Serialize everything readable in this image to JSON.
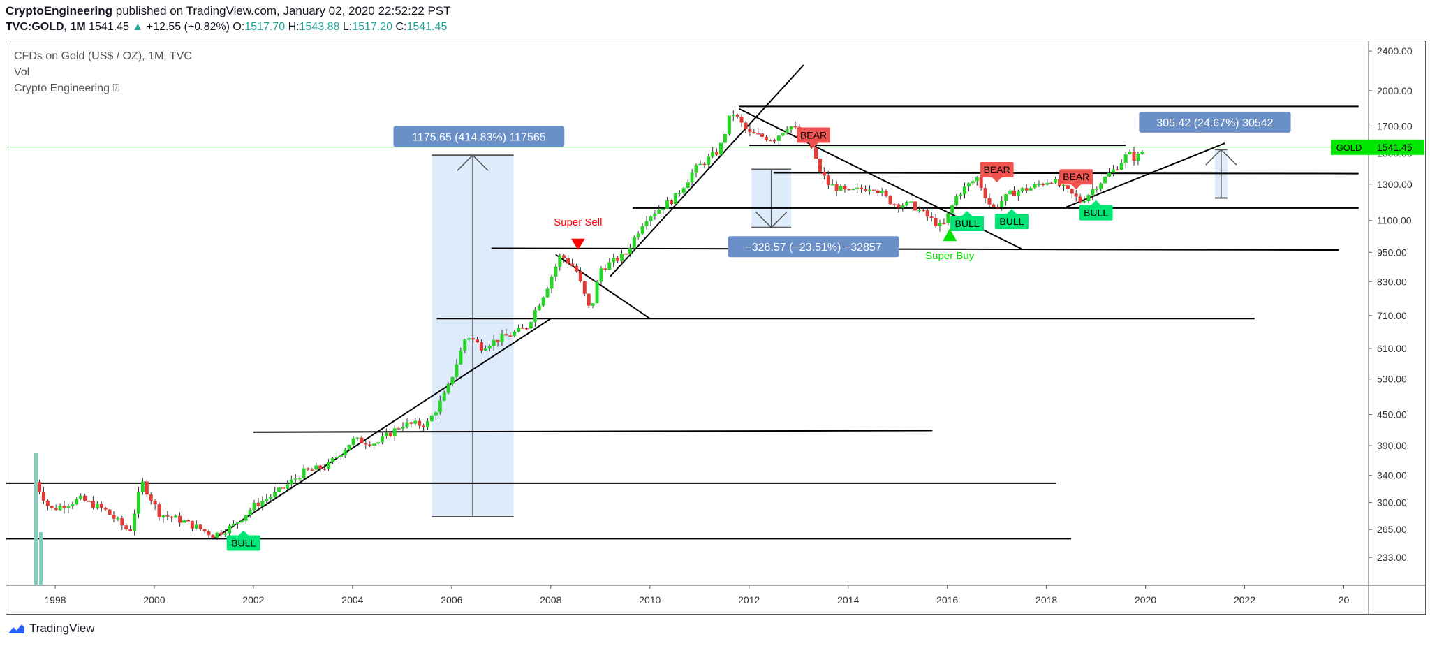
{
  "header": {
    "author": "CryptoEngineering",
    "published_text": " published on TradingView.com, January 02, 2020 22:52:22 PST",
    "symbol": "TVC:GOLD, 1M",
    "last": "1541.45",
    "change_arrow": "▲",
    "change": "+12.55 (+0.82%)",
    "o_label": "O:",
    "o_value": "1517.70",
    "h_label": "H:",
    "h_value": "1543.88",
    "l_label": "L:",
    "l_value": "1517.20",
    "c_label": "C:",
    "c_value": "1541.45"
  },
  "legend": {
    "title": "CFDs on Gold (US$ / OZ), 1M, TVC",
    "vol": "Vol",
    "indicator": "Crypto Engineering ⍰"
  },
  "footer": {
    "brand": "TradingView",
    "logo_icon": "tradingview-logo-icon"
  },
  "colors": {
    "bull": "#26d626",
    "bear": "#e53935",
    "label_bull": "#00e676",
    "label_bear": "#ef5350",
    "measure_box": "#cfe2f8",
    "measure_label": "#6b8fc7",
    "price_tag": "#00e600",
    "volume": "#7fcdbb"
  },
  "chart_data": {
    "type": "candlestick",
    "title": "CFDs on Gold (US$ / OZ), 1M, TVC",
    "scale": "log",
    "ylim": [
      205,
      2520
    ],
    "xlim": [
      1997.0,
      2024.5
    ],
    "y_ticks": [
      "2400.00",
      "2000.00",
      "1700.00",
      "1500.00",
      "1300.00",
      "1100.00",
      "950.00",
      "830.00",
      "710.00",
      "610.00",
      "530.00",
      "450.00",
      "390.00",
      "340.00",
      "300.00",
      "265.00",
      "233.00"
    ],
    "x_ticks": [
      "1998",
      "2000",
      "2002",
      "2004",
      "2006",
      "2008",
      "2010",
      "2012",
      "2014",
      "2016",
      "2018",
      "2020",
      "2022",
      "20"
    ],
    "current_price": {
      "symbol": "GOLD",
      "value": "1541.45",
      "price": 1541.45
    },
    "price_path": [
      [
        1997.6,
        330
      ],
      [
        1997.9,
        290
      ],
      [
        1998.5,
        305
      ],
      [
        1999.0,
        290
      ],
      [
        1999.5,
        262
      ],
      [
        1999.75,
        330
      ],
      [
        2000.1,
        285
      ],
      [
        2000.6,
        275
      ],
      [
        2001.2,
        258
      ],
      [
        2001.6,
        270
      ],
      [
        2002.0,
        295
      ],
      [
        2002.5,
        315
      ],
      [
        2003.0,
        345
      ],
      [
        2003.5,
        355
      ],
      [
        2004.0,
        400
      ],
      [
        2004.5,
        395
      ],
      [
        2005.0,
        430
      ],
      [
        2005.5,
        430
      ],
      [
        2005.9,
        500
      ],
      [
        2006.3,
        650
      ],
      [
        2006.6,
        615
      ],
      [
        2007.0,
        640
      ],
      [
        2007.5,
        670
      ],
      [
        2007.9,
        800
      ],
      [
        2008.2,
        940
      ],
      [
        2008.5,
        880
      ],
      [
        2008.8,
        720
      ],
      [
        2009.0,
        880
      ],
      [
        2009.5,
        940
      ],
      [
        2009.9,
        1110
      ],
      [
        2010.5,
        1220
      ],
      [
        2010.9,
        1390
      ],
      [
        2011.4,
        1520
      ],
      [
        2011.65,
        1820
      ],
      [
        2012.0,
        1640
      ],
      [
        2012.5,
        1600
      ],
      [
        2012.8,
        1710
      ],
      [
        2013.2,
        1600
      ],
      [
        2013.4,
        1400
      ],
      [
        2013.6,
        1300
      ],
      [
        2014.0,
        1250
      ],
      [
        2014.5,
        1290
      ],
      [
        2014.9,
        1190
      ],
      [
        2015.3,
        1180
      ],
      [
        2015.7,
        1100
      ],
      [
        2015.9,
        1060
      ],
      [
        2016.2,
        1240
      ],
      [
        2016.6,
        1340
      ],
      [
        2016.9,
        1160
      ],
      [
        2017.3,
        1250
      ],
      [
        2017.7,
        1280
      ],
      [
        2018.1,
        1330
      ],
      [
        2018.5,
        1240
      ],
      [
        2018.7,
        1200
      ],
      [
        2019.0,
        1290
      ],
      [
        2019.4,
        1400
      ],
      [
        2019.65,
        1500
      ],
      [
        2019.8,
        1460
      ],
      [
        2020.0,
        1541
      ]
    ],
    "volume_bars": [
      {
        "x": 1997.62,
        "relative_height": 1.0
      },
      {
        "x": 1997.72,
        "relative_height": 0.4
      }
    ],
    "trend_lines": [
      {
        "from": [
          1996.5,
          328
        ],
        "to": [
          2018.2,
          328
        ]
      },
      {
        "from": [
          1996.7,
          254
        ],
        "to": [
          2018.5,
          254
        ]
      },
      {
        "from": [
          2002.0,
          415
        ],
        "to": [
          2015.7,
          418
        ]
      },
      {
        "from": [
          2005.7,
          700
        ],
        "to": [
          2022.2,
          700
        ]
      },
      {
        "from": [
          2006.8,
          968
        ],
        "to": [
          2023.9,
          960
        ]
      },
      {
        "from": [
          2009.65,
          1165
        ],
        "to": [
          2024.3,
          1165
        ]
      },
      {
        "from": [
          2012.0,
          1555
        ],
        "to": [
          2019.6,
          1555
        ]
      },
      {
        "from": [
          2012.5,
          1370
        ],
        "to": [
          2024.3,
          1365
        ]
      },
      {
        "from": [
          2011.8,
          1860
        ],
        "to": [
          2024.3,
          1860
        ]
      },
      {
        "from": [
          2001.2,
          254
        ],
        "to": [
          2008.0,
          700
        ]
      },
      {
        "from": [
          2008.1,
          940
        ],
        "to": [
          2010.0,
          700
        ]
      },
      {
        "from": [
          2009.2,
          850
        ],
        "to": [
          2013.1,
          2250
        ]
      },
      {
        "from": [
          2011.8,
          1840
        ],
        "to": [
          2017.5,
          965
        ]
      },
      {
        "from": [
          2018.4,
          1170
        ],
        "to": [
          2021.6,
          1570
        ]
      }
    ],
    "measures": [
      {
        "x1": 2005.6,
        "x2": 2007.25,
        "y_low": 281,
        "y_high": 1486,
        "direction": "up",
        "label": "1175.65 (414.83%) 117565",
        "label_at": [
          2006.55,
          1620
        ]
      },
      {
        "x1": 2012.05,
        "x2": 2012.85,
        "y_low": 1065,
        "y_high": 1392,
        "direction": "down",
        "label": "−328.57 (−23.51%) −32857",
        "label_at": [
          2013.3,
          975
        ]
      },
      {
        "x1": 2021.4,
        "x2": 2021.65,
        "y_low": 1220,
        "y_high": 1525,
        "direction": "up",
        "label": "305.42 (24.67%) 30542",
        "label_at": [
          2021.4,
          1730
        ]
      }
    ],
    "signals": [
      {
        "type": "bull",
        "text": "BULL",
        "x": 2001.8,
        "y": 249
      },
      {
        "type": "bear",
        "text": "BEAR",
        "x": 2013.3,
        "y": 1630
      },
      {
        "type": "bear",
        "text": "BEAR",
        "x": 2017.0,
        "y": 1390
      },
      {
        "type": "bear",
        "text": "BEAR",
        "x": 2018.6,
        "y": 1345
      },
      {
        "type": "bull",
        "text": "BULL",
        "x": 2016.4,
        "y": 1085
      },
      {
        "type": "bull",
        "text": "BULL",
        "x": 2017.3,
        "y": 1095
      },
      {
        "type": "bull",
        "text": "BULL",
        "x": 2019.0,
        "y": 1140
      }
    ],
    "annotations": [
      {
        "text": "Super Sell",
        "kind": "sell",
        "x": 2008.55,
        "y": 970
      },
      {
        "text": "Super Buy",
        "kind": "buy",
        "x": 2016.05,
        "y": 1040
      }
    ]
  }
}
